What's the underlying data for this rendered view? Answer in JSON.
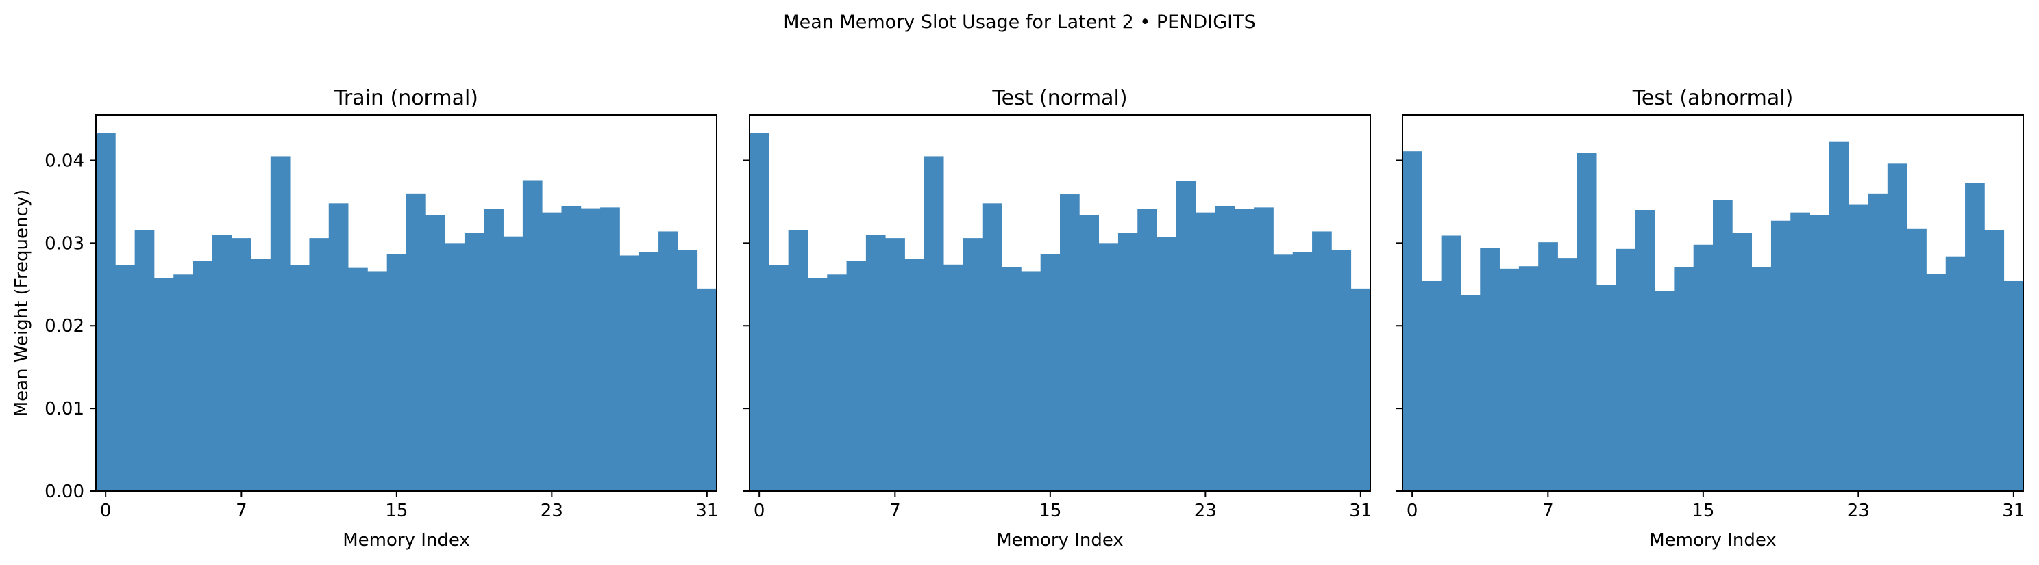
{
  "figure": {
    "suptitle": "Mean Memory Slot Usage for Latent 2 • PENDIGITS"
  },
  "style": {
    "bar_color": "#4389be",
    "axis_color": "#000000",
    "background": "#ffffff"
  },
  "chart_data": [
    {
      "type": "bar",
      "title": "Train (normal)",
      "xlabel": "Memory Index",
      "ylabel": "Mean Weight (Frequency)",
      "x": [
        0,
        1,
        2,
        3,
        4,
        5,
        6,
        7,
        8,
        9,
        10,
        11,
        12,
        13,
        14,
        15,
        16,
        17,
        18,
        19,
        20,
        21,
        22,
        23,
        24,
        25,
        26,
        27,
        28,
        29,
        30,
        31
      ],
      "values": [
        0.0433,
        0.0273,
        0.0316,
        0.0258,
        0.0262,
        0.0278,
        0.031,
        0.0306,
        0.0281,
        0.0405,
        0.0273,
        0.0306,
        0.0348,
        0.027,
        0.0266,
        0.0287,
        0.036,
        0.0334,
        0.03,
        0.0312,
        0.0341,
        0.0308,
        0.0376,
        0.0337,
        0.0345,
        0.0342,
        0.0343,
        0.0285,
        0.0289,
        0.0314,
        0.0292,
        0.0245
      ],
      "xticks": [
        "0",
        "7",
        "15",
        "23",
        "31"
      ],
      "xtick_values": [
        0,
        7,
        15,
        23,
        31
      ],
      "yticks": [
        "0.00",
        "0.01",
        "0.02",
        "0.03",
        "0.04"
      ],
      "ytick_values": [
        0,
        0.01,
        0.02,
        0.03,
        0.04
      ],
      "xlim": [
        -0.5,
        31.5
      ],
      "ylim": [
        0,
        0.0455
      ],
      "grid": false,
      "show_ytick_labels": true
    },
    {
      "type": "bar",
      "title": "Test (normal)",
      "xlabel": "Memory Index",
      "ylabel": "",
      "x": [
        0,
        1,
        2,
        3,
        4,
        5,
        6,
        7,
        8,
        9,
        10,
        11,
        12,
        13,
        14,
        15,
        16,
        17,
        18,
        19,
        20,
        21,
        22,
        23,
        24,
        25,
        26,
        27,
        28,
        29,
        30,
        31
      ],
      "values": [
        0.0433,
        0.0273,
        0.0316,
        0.0258,
        0.0262,
        0.0278,
        0.031,
        0.0306,
        0.0281,
        0.0405,
        0.0274,
        0.0306,
        0.0348,
        0.0271,
        0.0266,
        0.0287,
        0.0359,
        0.0334,
        0.03,
        0.0312,
        0.0341,
        0.0307,
        0.0375,
        0.0337,
        0.0345,
        0.0341,
        0.0343,
        0.0286,
        0.0289,
        0.0314,
        0.0292,
        0.0245
      ],
      "xticks": [
        "0",
        "7",
        "15",
        "23",
        "31"
      ],
      "xtick_values": [
        0,
        7,
        15,
        23,
        31
      ],
      "yticks": [
        "0.00",
        "0.01",
        "0.02",
        "0.03",
        "0.04"
      ],
      "ytick_values": [
        0,
        0.01,
        0.02,
        0.03,
        0.04
      ],
      "xlim": [
        -0.5,
        31.5
      ],
      "ylim": [
        0,
        0.0455
      ],
      "grid": false,
      "show_ytick_labels": false
    },
    {
      "type": "bar",
      "title": "Test (abnormal)",
      "xlabel": "Memory Index",
      "ylabel": "",
      "x": [
        0,
        1,
        2,
        3,
        4,
        5,
        6,
        7,
        8,
        9,
        10,
        11,
        12,
        13,
        14,
        15,
        16,
        17,
        18,
        19,
        20,
        21,
        22,
        23,
        24,
        25,
        26,
        27,
        28,
        29,
        30,
        31
      ],
      "values": [
        0.0411,
        0.0254,
        0.0309,
        0.0237,
        0.0294,
        0.0269,
        0.0272,
        0.0301,
        0.0282,
        0.0409,
        0.0249,
        0.0293,
        0.034,
        0.0242,
        0.0271,
        0.0298,
        0.0352,
        0.0312,
        0.0271,
        0.0327,
        0.0337,
        0.0334,
        0.0423,
        0.0347,
        0.036,
        0.0396,
        0.0317,
        0.0263,
        0.0284,
        0.0373,
        0.0316,
        0.0254
      ],
      "xticks": [
        "0",
        "7",
        "15",
        "23",
        "31"
      ],
      "xtick_values": [
        0,
        7,
        15,
        23,
        31
      ],
      "yticks": [
        "0.00",
        "0.01",
        "0.02",
        "0.03",
        "0.04"
      ],
      "ytick_values": [
        0,
        0.01,
        0.02,
        0.03,
        0.04
      ],
      "xlim": [
        -0.5,
        31.5
      ],
      "ylim": [
        0,
        0.0455
      ],
      "grid": false,
      "show_ytick_labels": false
    }
  ]
}
